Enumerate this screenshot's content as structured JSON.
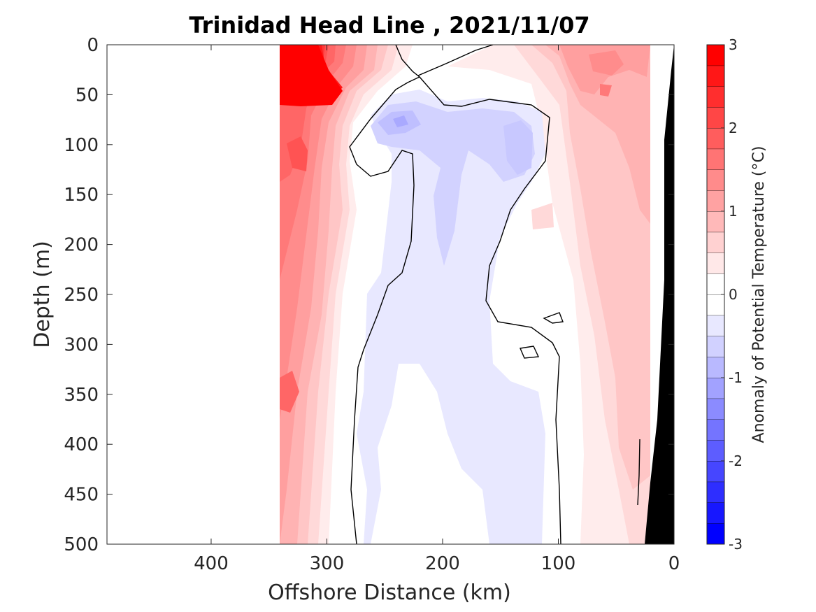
{
  "chart_data": {
    "type": "heatmap",
    "title": "Trinidad Head Line , 2021/11/07",
    "xlabel": "Offshore Distance (km)",
    "ylabel": "Depth (m)",
    "xlim": [
      490,
      0
    ],
    "ylim": [
      0,
      500
    ],
    "x_reversed": true,
    "y_reversed": true,
    "xticks": [
      "400",
      "300",
      "200",
      "100",
      "0"
    ],
    "yticks": [
      "0",
      "50",
      "100",
      "150",
      "200",
      "250",
      "300",
      "350",
      "400",
      "450",
      "500"
    ],
    "colorbar": {
      "label": "Anomaly of Potential Temperature (°C)",
      "ticks": [
        "3",
        "2",
        "1",
        "0",
        "-1",
        "-2",
        "-3"
      ],
      "range": [
        -3,
        3
      ],
      "levels": [
        -3,
        -2.75,
        -2.5,
        -2.25,
        -2,
        -1.75,
        -1.5,
        -1.25,
        -1,
        -0.75,
        -0.5,
        -0.25,
        0,
        0.25,
        0.5,
        0.75,
        1,
        1.25,
        1.5,
        1.75,
        2,
        2.25,
        2.5,
        2.75,
        3
      ],
      "colors": {
        "warm_max": "#ff0000",
        "cold_max": "#0000ff",
        "neutral": "#ffffff"
      }
    },
    "data_extent_km": [
      340,
      20
    ],
    "bottom_fill_color": "#000000",
    "anomaly_samples": {
      "distance_km": [
        330,
        300,
        275,
        250,
        220,
        200,
        170,
        140,
        110,
        80,
        50,
        25
      ],
      "depth_m": [
        25,
        75,
        125,
        200,
        300,
        400,
        475
      ],
      "values": [
        [
          3.0,
          2.4,
          1.2,
          0.4,
          0.0,
          0.0,
          0.3,
          0.6,
          0.8,
          1.2,
          1.2,
          1.0
        ],
        [
          2.0,
          1.4,
          0.6,
          -0.9,
          -0.5,
          -0.2,
          -0.6,
          -0.6,
          0.1,
          1.2,
          1.0,
          0.9
        ],
        [
          2.0,
          1.3,
          0.4,
          -0.2,
          -0.4,
          -0.6,
          -0.3,
          -0.5,
          0.0,
          1.1,
          0.9,
          0.8
        ],
        [
          1.8,
          1.0,
          0.5,
          0.0,
          -0.3,
          -0.6,
          -0.2,
          0.0,
          0.3,
          0.9,
          0.7,
          0.6
        ],
        [
          1.5,
          0.8,
          0.3,
          0.0,
          -0.2,
          -0.1,
          0.0,
          0.0,
          0.2,
          0.7,
          0.6,
          0.4
        ],
        [
          1.3,
          0.7,
          0.2,
          -0.2,
          -0.3,
          -0.3,
          0.0,
          -0.2,
          0.0,
          0.5,
          0.5,
          0.3
        ],
        [
          0.9,
          0.5,
          0.2,
          -0.2,
          -0.3,
          -0.3,
          -0.2,
          -0.2,
          0.0,
          0.4,
          0.3,
          0.1
        ]
      ]
    }
  }
}
